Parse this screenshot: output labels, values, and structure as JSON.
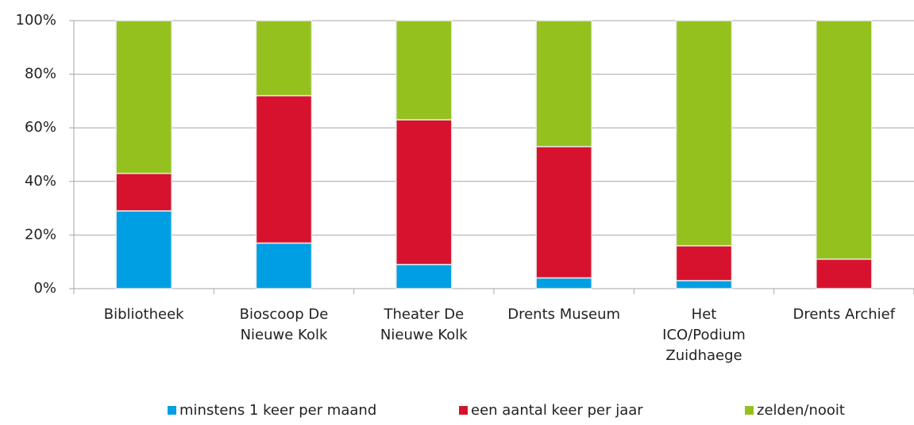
{
  "chart_data": {
    "type": "bar",
    "stacked": true,
    "categories": [
      "Bibliotheek",
      "Bioscoop De\nNieuwe Kolk",
      "Theater De\nNieuwe Kolk",
      "Drents Museum",
      "Het\nICO/Podium\nZuidhaege",
      "Drents Archief"
    ],
    "series": [
      {
        "name": "minstens 1 keer per maand",
        "color": "#009fe3",
        "values": [
          29,
          17,
          9,
          4,
          3,
          0
        ]
      },
      {
        "name": "een aantal keer per jaar",
        "color": "#d7122f",
        "values": [
          14,
          55,
          54,
          49,
          13,
          11
        ]
      },
      {
        "name": "zelden/nooit",
        "color": "#95c11f",
        "values": [
          57,
          28,
          37,
          47,
          84,
          89
        ]
      }
    ],
    "ylim": [
      0,
      100
    ],
    "yticks": [
      {
        "value": 0,
        "label": "0%"
      },
      {
        "value": 20,
        "label": "20%"
      },
      {
        "value": 40,
        "label": "40%"
      },
      {
        "value": 60,
        "label": "60%"
      },
      {
        "value": 80,
        "label": "80%"
      },
      {
        "value": 100,
        "label": "100%"
      }
    ],
    "grid": true,
    "legend": "bottom"
  }
}
